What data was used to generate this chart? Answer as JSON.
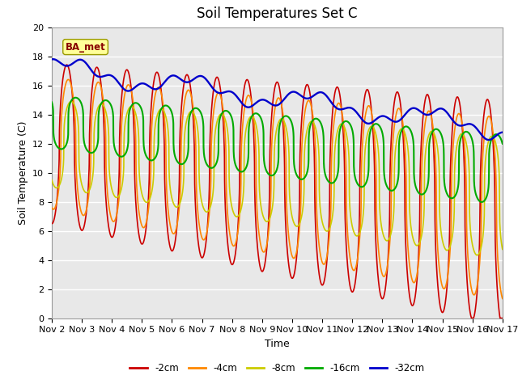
{
  "title": "Soil Temperatures Set C",
  "xlabel": "Time",
  "ylabel": "Soil Temperature (C)",
  "ylim": [
    0,
    20
  ],
  "xlim": [
    0,
    15
  ],
  "fig_bg": "#ffffff",
  "plot_bg": "#e8e8e8",
  "grid_color": "#ffffff",
  "legend_labels": [
    "-2cm",
    "-4cm",
    "-8cm",
    "-16cm",
    "-32cm"
  ],
  "legend_colors": [
    "#cc0000",
    "#ff8800",
    "#cccc00",
    "#00aa00",
    "#0000cc"
  ],
  "label_box": "BA_met",
  "label_box_bg": "#ffff99",
  "label_box_border": "#999900",
  "label_box_text_color": "#880000",
  "tick_labels": [
    "Nov 2",
    "Nov 3",
    "Nov 4",
    "Nov 5",
    "Nov 6",
    "Nov 7",
    "Nov 8",
    "Nov 9",
    "Nov 10",
    "Nov 11",
    "Nov 12",
    "Nov 13",
    "Nov 14",
    "Nov 15",
    "Nov 16",
    "Nov 17"
  ],
  "title_fontsize": 12,
  "axis_fontsize": 9,
  "tick_fontsize": 8
}
